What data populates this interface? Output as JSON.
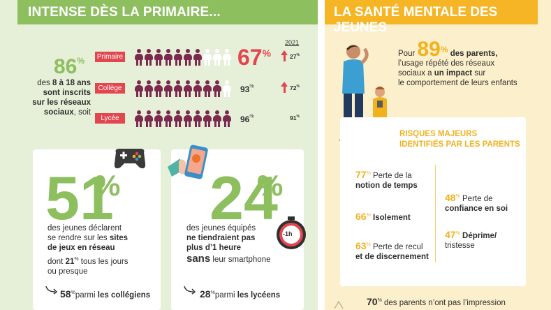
{
  "left": {
    "title": "INTENSE DÈS LA PRIMAIRE...",
    "year_label": "2021",
    "intro": {
      "pct": "86",
      "pct_sign": "%",
      "line1_pre": "des ",
      "line1_bold": "8 à 18 ans",
      "line2": "sont inscrits",
      "line3": "sur les réseaux",
      "line4_bold": "sociaux",
      "line4_rest": ", soit"
    },
    "levels": [
      {
        "label": "Primaire",
        "value": "67",
        "unit": "%",
        "filled": 7,
        "total": 10,
        "prev": "27",
        "prev_unit": "%",
        "arrow": true
      },
      {
        "label": "Collège",
        "value": "93",
        "unit": "%",
        "filled": 9,
        "total": 10,
        "prev": "72",
        "prev_unit": "%",
        "arrow": true
      },
      {
        "label": "Lycée",
        "value": "96",
        "unit": "%",
        "filled": 10,
        "total": 10,
        "prev": "91",
        "prev_unit": "%",
        "arrow": false
      }
    ],
    "card1": {
      "pct": "51",
      "sign": "%",
      "l1": "des jeunes déclarent",
      "l2_pre": "se rendre sur les ",
      "l2_bold": "sites",
      "l3_bold": "de jeux en réseau",
      "l4_pre": "dont ",
      "l4_num": "21",
      "l4_unit": "%",
      "l4_rest": " tous les jours",
      "l5": "ou presque",
      "foot_num": "58",
      "foot_unit": "%",
      "foot_pre": "parmi ",
      "foot_bold": "les collégiens"
    },
    "card2": {
      "pct": "24",
      "sign": "%",
      "l1": "des jeunes équipés",
      "l2_bold": "ne tiendraient pas",
      "l3_bold": "plus d’1 heure",
      "l4_bold": "sans",
      "l4_rest": " leur smartphone",
      "timer": "-1h",
      "foot_num": "28",
      "foot_unit": "%",
      "foot_pre": "parmi ",
      "foot_bold": "les lycéens"
    }
  },
  "right": {
    "title": "LA SANTÉ MENTALE DES JEUNES",
    "top": {
      "pre": "Pour ",
      "pct": "89",
      "sign": "%",
      "after": " des parents,",
      "l2": "l’usage répété des réseaux",
      "l3_pre": "sociaux a ",
      "l3_bold": "un impact",
      "l3_rest": " sur",
      "l4": "le comportement de leurs enfants"
    },
    "risks_title_1": "RISQUES MAJEURS",
    "risks_title_2": "IDENTIFIÉS PAR LES PARENTS",
    "risks": [
      {
        "num": "77",
        "unit": "%",
        "a": " Perte de la",
        "b": "notion de temps"
      },
      {
        "num": "66",
        "unit": "%",
        "a": " Isolement",
        "b": ""
      },
      {
        "num": "63",
        "unit": "%",
        "a": " Perte de recul",
        "b": "et de discernement"
      },
      {
        "num": "48",
        "unit": "%",
        "a": " Perte de",
        "b": "confiance en soi"
      },
      {
        "num": "47",
        "unit": "%",
        "a": " Déprime/",
        "b": "tristesse"
      }
    ],
    "bottom": {
      "num": "70",
      "unit": "%",
      "text": " des parents n’ont pas l’impression"
    }
  },
  "colors": {
    "green": "#8dbf5f",
    "yellow": "#f5b524",
    "red": "#e2464f",
    "maroon": "#7b2a4e"
  }
}
